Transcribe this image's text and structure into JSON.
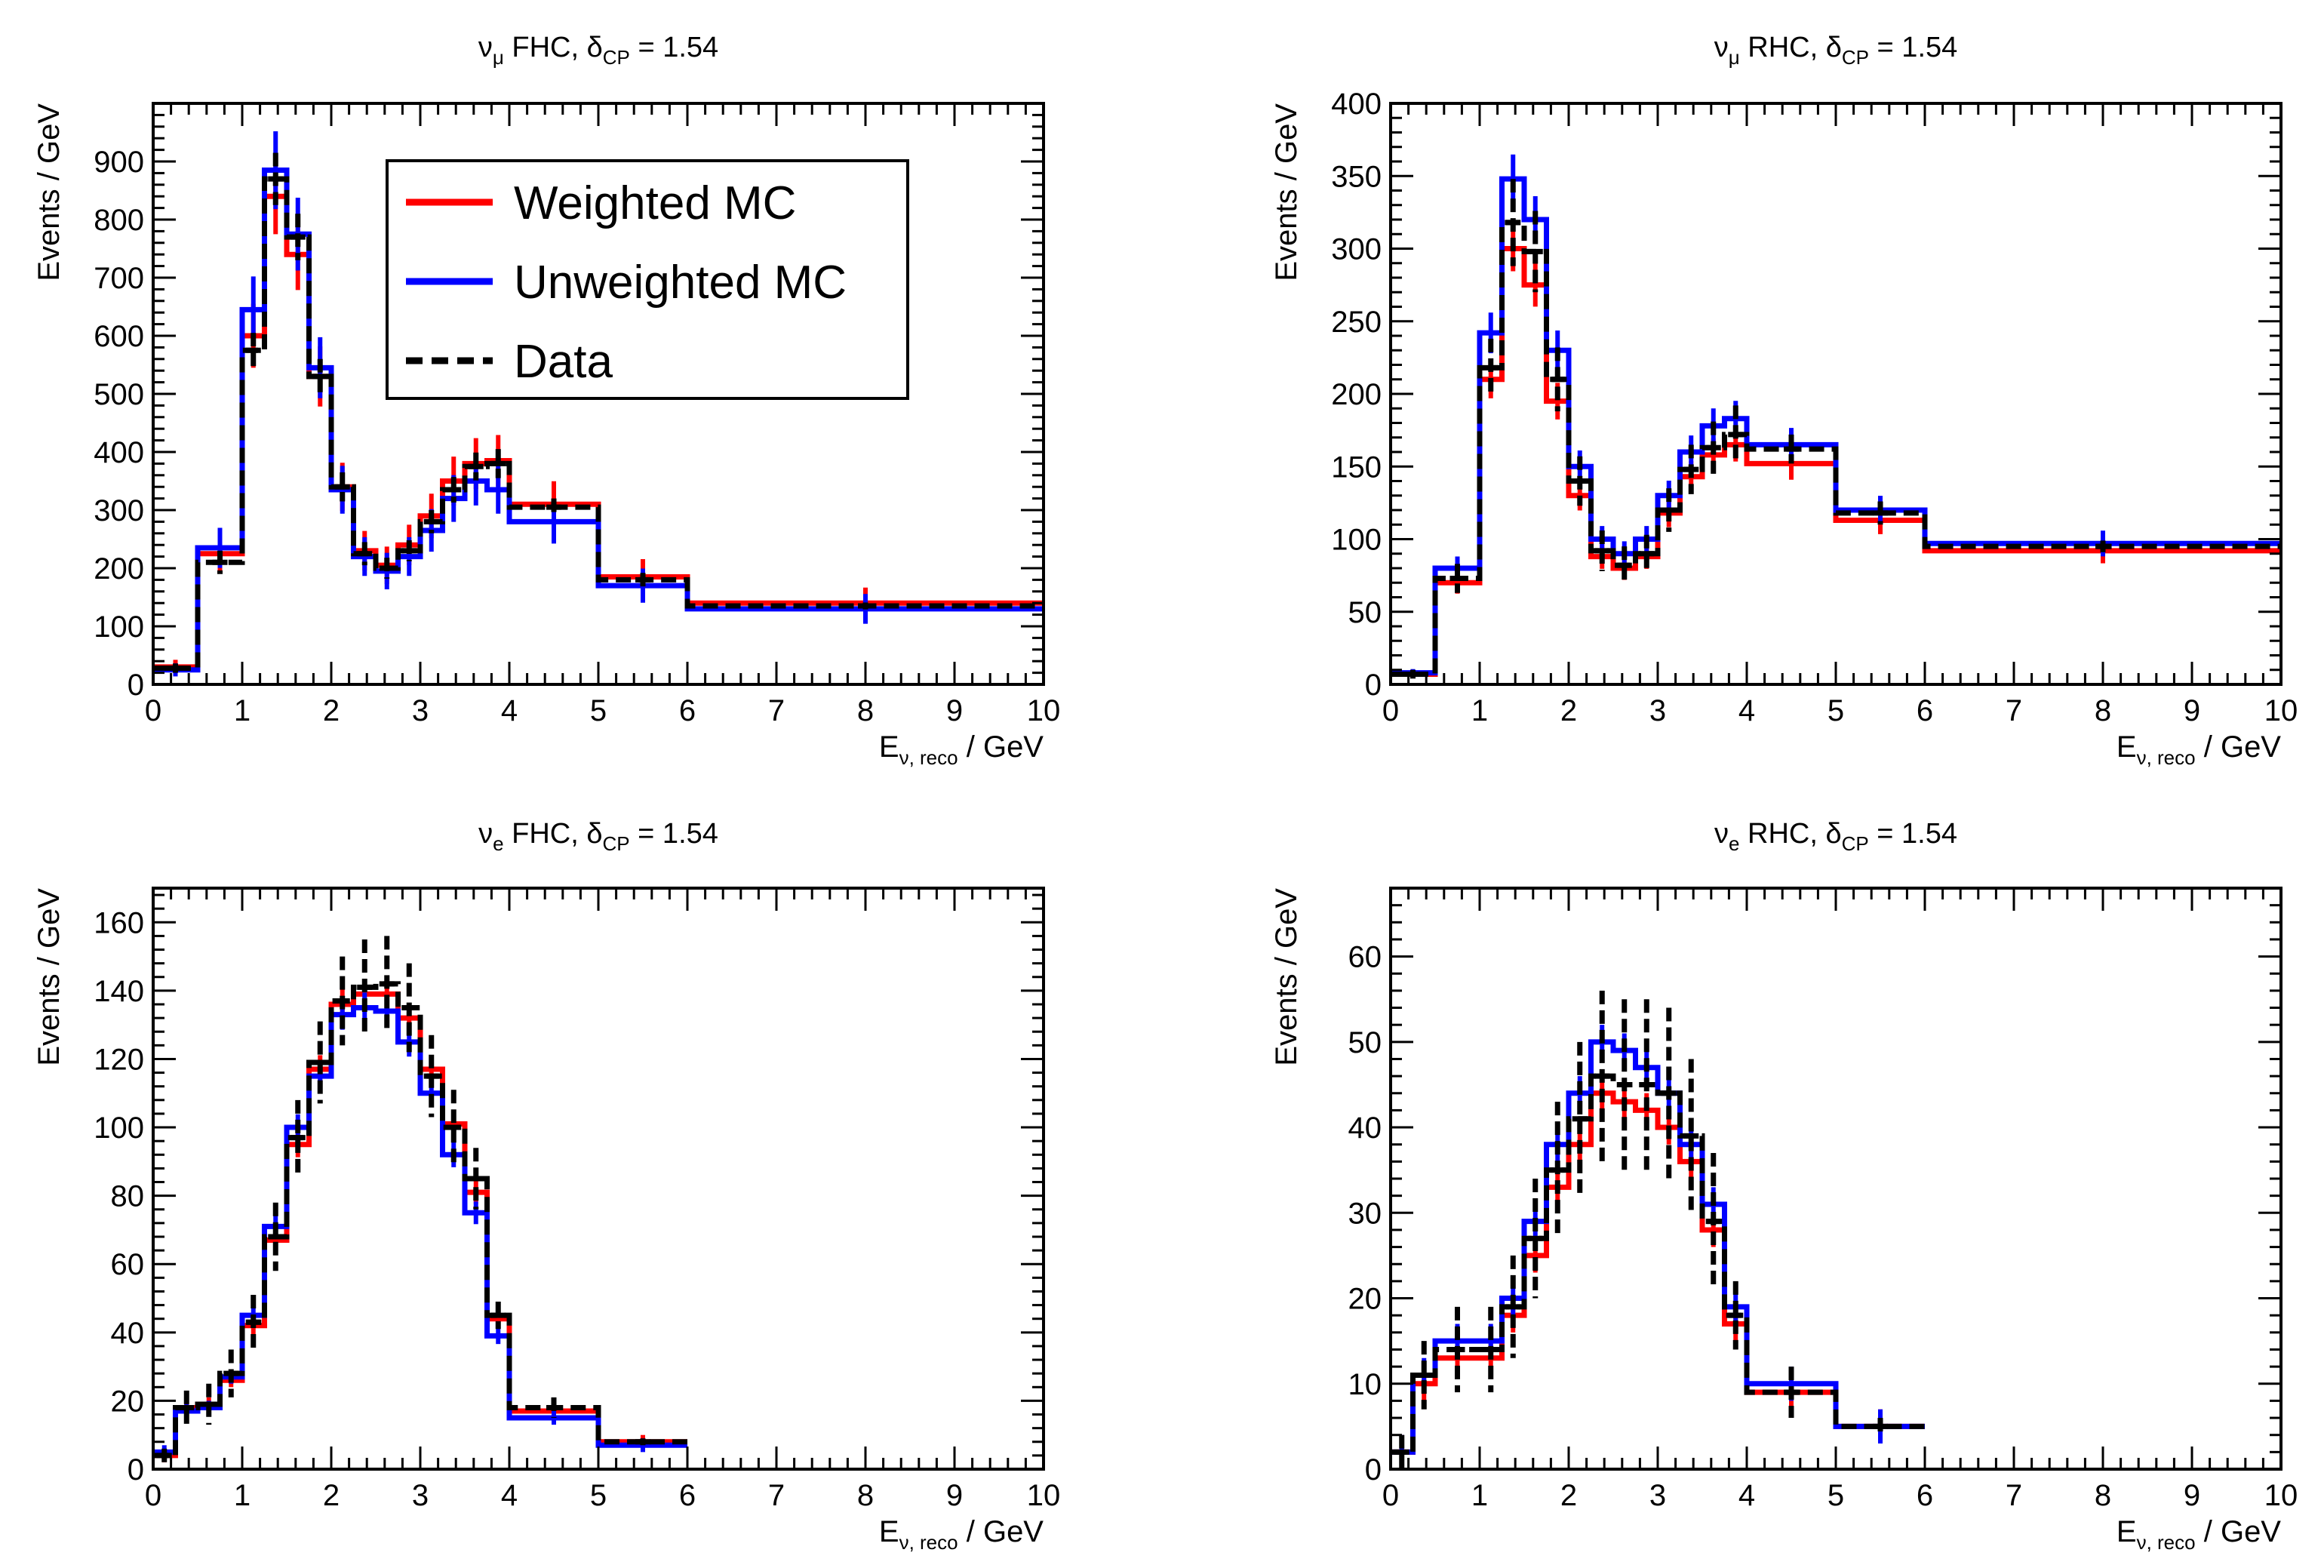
{
  "chart_data": [
    {
      "type": "step",
      "title": {
        "nu": "ν",
        "flavor": "μ",
        "horn": "FHC",
        "delta": "δ",
        "cp": "CP",
        "value": "= 1.54"
      },
      "xlabel": {
        "E": "E",
        "sub": "ν, reco",
        "unit": "/ GeV"
      },
      "ylabel": "Events / GeV",
      "xlim": [
        0,
        10
      ],
      "ylim": [
        0,
        1000
      ],
      "xticks": [
        0,
        1,
        2,
        3,
        4,
        5,
        6,
        7,
        8,
        9,
        10
      ],
      "yticks": [
        0,
        100,
        200,
        300,
        400,
        500,
        600,
        700,
        800,
        900
      ],
      "bin_edges": [
        0,
        0.5,
        1.0,
        1.25,
        1.5,
        1.75,
        2.0,
        2.25,
        2.5,
        2.75,
        3.0,
        3.25,
        3.5,
        3.75,
        4.0,
        5.0,
        6.0,
        10.0
      ],
      "series": [
        {
          "name": "Weighted MC",
          "color": "#ff0000",
          "values": [
            30,
            225,
            600,
            840,
            740,
            530,
            340,
            230,
            205,
            240,
            290,
            350,
            380,
            385,
            310,
            185,
            140
          ]
        },
        {
          "name": "Unweighted MC",
          "color": "#0000ff",
          "values": [
            25,
            235,
            645,
            885,
            775,
            545,
            335,
            220,
            195,
            220,
            265,
            320,
            350,
            335,
            280,
            170,
            130
          ]
        },
        {
          "name": "Data",
          "color": "#000000",
          "dashed": true,
          "values": [
            28,
            210,
            575,
            870,
            770,
            530,
            340,
            225,
            200,
            230,
            280,
            335,
            375,
            380,
            305,
            180,
            135
          ],
          "errors": [
            8,
            20,
            30,
            45,
            40,
            30,
            25,
            20,
            18,
            18,
            20,
            22,
            24,
            25,
            15,
            12,
            6
          ]
        }
      ],
      "legend": {
        "position": "top-center",
        "entries": [
          "Weighted MC",
          "Unweighted MC",
          "Data"
        ]
      }
    },
    {
      "type": "step",
      "title": {
        "nu": "ν",
        "flavor": "μ",
        "horn": "RHC",
        "delta": "δ",
        "cp": "CP",
        "value": "= 1.54"
      },
      "xlabel": {
        "E": "E",
        "sub": "ν, reco",
        "unit": "/ GeV"
      },
      "ylabel": "Events / GeV",
      "xlim": [
        0,
        10
      ],
      "ylim": [
        0,
        400
      ],
      "xticks": [
        0,
        1,
        2,
        3,
        4,
        5,
        6,
        7,
        8,
        9,
        10
      ],
      "yticks": [
        0,
        50,
        100,
        150,
        200,
        250,
        300,
        350,
        400
      ],
      "bin_edges": [
        0,
        0.5,
        1.0,
        1.25,
        1.5,
        1.75,
        2.0,
        2.25,
        2.5,
        2.75,
        3.0,
        3.25,
        3.5,
        3.75,
        4.0,
        5.0,
        6.0,
        10.0
      ],
      "series": [
        {
          "name": "Weighted MC",
          "color": "#ff0000",
          "values": [
            7,
            70,
            210,
            300,
            275,
            195,
            130,
            88,
            80,
            88,
            118,
            143,
            158,
            165,
            152,
            113,
            92
          ]
        },
        {
          "name": "Unweighted MC",
          "color": "#0000ff",
          "values": [
            8,
            80,
            242,
            348,
            320,
            230,
            150,
            100,
            90,
            100,
            130,
            160,
            178,
            183,
            165,
            120,
            97
          ]
        },
        {
          "name": "Data",
          "color": "#000000",
          "dashed": true,
          "values": [
            7,
            73,
            218,
            318,
            298,
            210,
            140,
            92,
            82,
            90,
            120,
            148,
            163,
            172,
            162,
            118,
            95
          ],
          "errors": [
            3,
            10,
            20,
            30,
            28,
            22,
            17,
            14,
            13,
            13,
            15,
            17,
            18,
            20,
            10,
            8,
            4
          ]
        }
      ],
      "legend": null
    },
    {
      "type": "step",
      "title": {
        "nu": "ν",
        "flavor": "e",
        "horn": "FHC",
        "delta": "δ",
        "cp": "CP",
        "value": "= 1.54"
      },
      "xlabel": {
        "E": "E",
        "sub": "ν, reco",
        "unit": "/ GeV"
      },
      "ylabel": "Events / GeV",
      "xlim": [
        0,
        10
      ],
      "ylim": [
        0,
        170
      ],
      "xticks": [
        0,
        1,
        2,
        3,
        4,
        5,
        6,
        7,
        8,
        9,
        10
      ],
      "yticks": [
        0,
        20,
        40,
        60,
        80,
        100,
        120,
        140,
        160
      ],
      "bin_edges": [
        0,
        0.25,
        0.5,
        0.75,
        1.0,
        1.25,
        1.5,
        1.75,
        2.0,
        2.25,
        2.5,
        2.75,
        3.0,
        3.25,
        3.5,
        3.75,
        4.0,
        5.0,
        6.0,
        10.0
      ],
      "series": [
        {
          "name": "Weighted MC",
          "color": "#ff0000",
          "values": [
            4,
            18,
            19,
            26,
            42,
            67,
            95,
            117,
            136,
            139,
            139,
            132,
            117,
            101,
            81,
            44,
            17,
            8
          ]
        },
        {
          "name": "Unweighted MC",
          "color": "#0000ff",
          "values": [
            5,
            17,
            18,
            27,
            45,
            71,
            100,
            115,
            133,
            135,
            134,
            125,
            110,
            92,
            75,
            39,
            15,
            7
          ]
        },
        {
          "name": "Data",
          "color": "#000000",
          "dashed": true,
          "values": [
            4,
            18,
            19,
            28,
            43,
            68,
            97,
            119,
            137,
            141,
            142,
            135,
            115,
            100,
            85,
            45,
            18,
            8
          ],
          "errors": [
            2,
            5,
            6,
            7,
            8,
            10,
            11,
            12,
            13,
            14,
            14,
            13,
            12,
            11,
            9,
            4,
            3,
            1
          ]
        }
      ],
      "legend": null
    },
    {
      "type": "step",
      "title": {
        "nu": "ν",
        "flavor": "e",
        "horn": "RHC",
        "delta": "δ",
        "cp": "CP",
        "value": "= 1.54"
      },
      "xlabel": {
        "E": "E",
        "sub": "ν, reco",
        "unit": "/ GeV"
      },
      "ylabel": "Events / GeV",
      "xlim": [
        0,
        10
      ],
      "ylim": [
        0,
        68
      ],
      "xticks": [
        0,
        1,
        2,
        3,
        4,
        5,
        6,
        7,
        8,
        9,
        10
      ],
      "yticks": [
        0,
        10,
        20,
        30,
        40,
        50,
        60
      ],
      "bin_edges": [
        0,
        0.25,
        0.5,
        1.0,
        1.25,
        1.5,
        1.75,
        2.0,
        2.25,
        2.5,
        2.75,
        3.0,
        3.25,
        3.5,
        3.75,
        4.0,
        5.0,
        6.0,
        10.0
      ],
      "series": [
        {
          "name": "Weighted MC",
          "color": "#ff0000",
          "values": [
            2,
            10,
            13,
            13,
            18,
            25,
            33,
            38,
            44,
            43,
            42,
            40,
            36,
            28,
            17,
            9,
            5
          ]
        },
        {
          "name": "Unweighted MC",
          "color": "#0000ff",
          "values": [
            2,
            11,
            15,
            15,
            20,
            29,
            38,
            44,
            50,
            49,
            47,
            44,
            38,
            31,
            19,
            10,
            5
          ]
        },
        {
          "name": "Data",
          "color": "#000000",
          "dashed": true,
          "values": [
            2,
            11,
            14,
            14,
            19,
            27,
            35,
            41,
            46,
            45,
            45,
            44,
            39,
            29,
            18,
            9,
            5
          ],
          "errors": [
            2,
            4,
            5,
            5,
            6,
            7,
            8,
            9,
            10,
            10,
            10,
            10,
            9,
            8,
            4,
            3,
            1
          ]
        }
      ],
      "legend": null
    }
  ]
}
